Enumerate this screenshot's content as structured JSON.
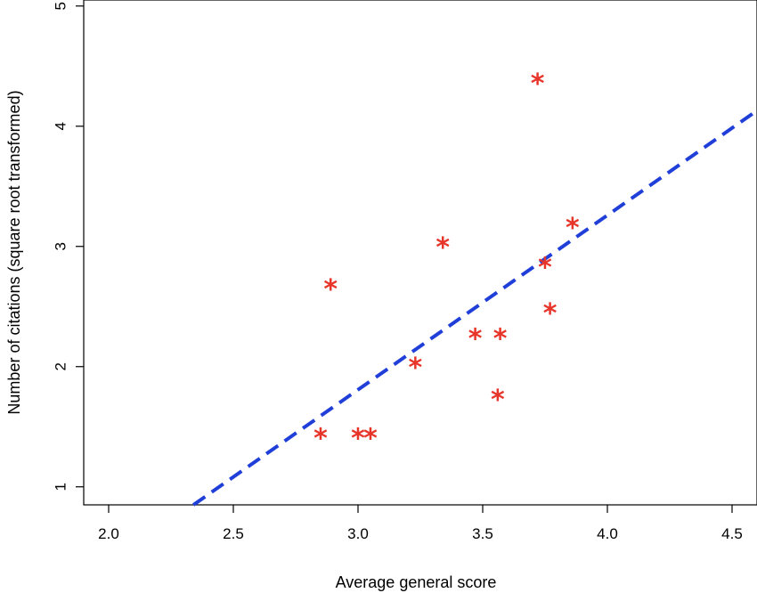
{
  "chart_data": {
    "type": "scatter",
    "title": "",
    "xlabel": "Average general score",
    "ylabel": "Number of citations (square root transformed)",
    "xlim": [
      1.9,
      4.6
    ],
    "ylim": [
      0.85,
      5.05
    ],
    "xticks": [
      2.0,
      2.5,
      3.0,
      3.5,
      4.0,
      4.5
    ],
    "xtick_labels": [
      "2.0",
      "2.5",
      "3.0",
      "3.5",
      "4.0",
      "4.5"
    ],
    "yticks": [
      1,
      2,
      3,
      4,
      5
    ],
    "ytick_labels": [
      "1",
      "2",
      "3",
      "4",
      "5"
    ],
    "grid": false,
    "point_marker": "*",
    "point_color": "#e8352a",
    "points": [
      {
        "x": 2.85,
        "y": 1.41
      },
      {
        "x": 2.89,
        "y": 2.65
      },
      {
        "x": 3.0,
        "y": 1.41
      },
      {
        "x": 3.05,
        "y": 1.41
      },
      {
        "x": 3.23,
        "y": 2.0
      },
      {
        "x": 3.34,
        "y": 3.0
      },
      {
        "x": 3.47,
        "y": 2.24
      },
      {
        "x": 3.56,
        "y": 1.73
      },
      {
        "x": 3.57,
        "y": 2.24
      },
      {
        "x": 3.72,
        "y": 4.36
      },
      {
        "x": 3.75,
        "y": 2.83
      },
      {
        "x": 3.77,
        "y": 2.45
      },
      {
        "x": 3.86,
        "y": 3.16
      }
    ],
    "fit_line": {
      "style": "dashed",
      "color": "#1f3fd8",
      "x": [
        2.34,
        4.6
      ],
      "y": [
        0.85,
        4.13
      ]
    }
  }
}
